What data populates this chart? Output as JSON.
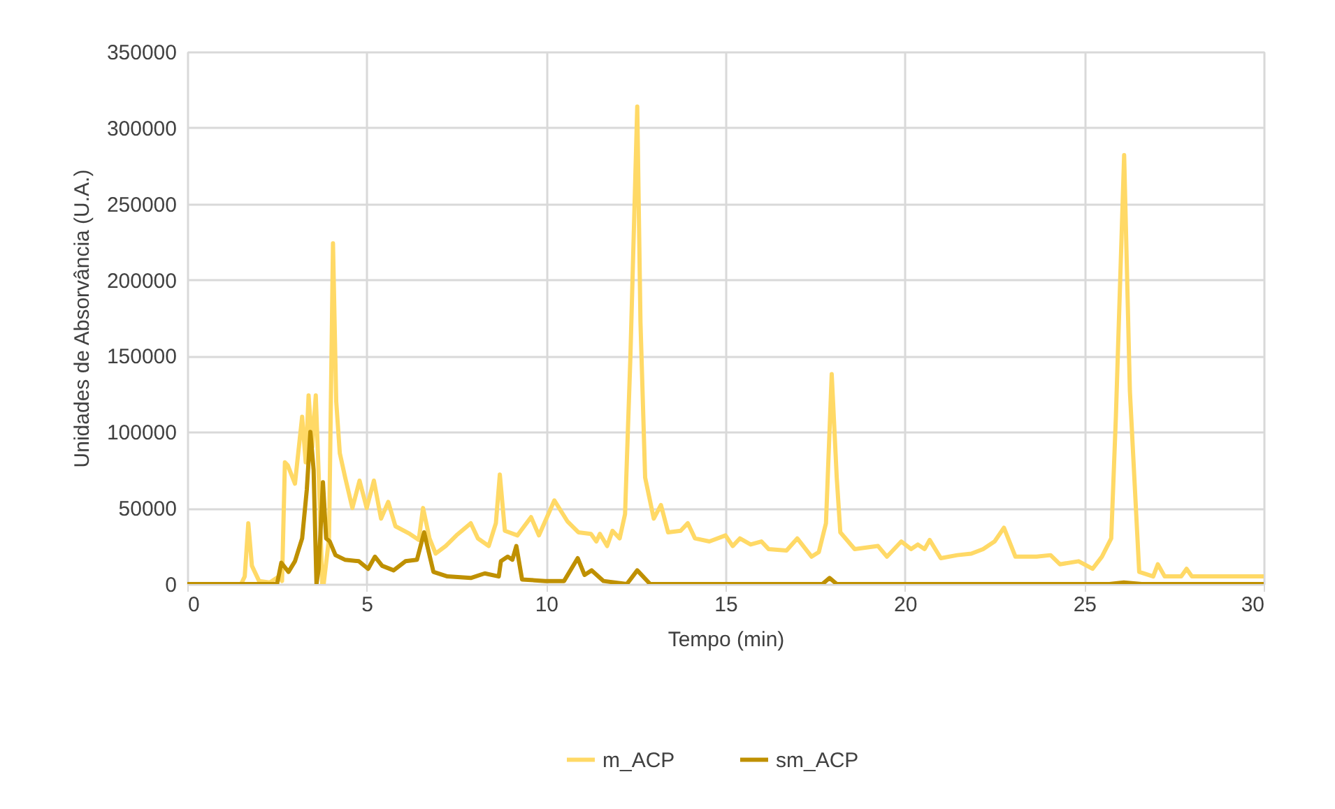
{
  "chart_data": {
    "type": "line",
    "xlabel": "Tempo (min)",
    "ylabel": "Unidades de Absorvância (U.A.)",
    "xlim": [
      0,
      30
    ],
    "xticks": [
      0,
      5,
      10,
      15,
      20,
      25,
      30
    ],
    "ylim": [
      0,
      350000
    ],
    "yticks": [
      0,
      50000,
      100000,
      150000,
      200000,
      250000,
      300000,
      350000
    ],
    "grid": true,
    "legend": "bottom",
    "marker": "none",
    "line_style": "solid",
    "series": [
      {
        "name": "m_ACP",
        "color": "#ffd966",
        "x": [
          0,
          1.5,
          1.6,
          1.7,
          1.8,
          2.0,
          2.3,
          2.55,
          2.64,
          2.72,
          2.8,
          3.0,
          3.2,
          3.3,
          3.38,
          3.48,
          3.58,
          3.68,
          3.76,
          3.8,
          3.95,
          4.06,
          4.15,
          4.25,
          4.4,
          4.6,
          4.8,
          5.0,
          5.2,
          5.4,
          5.6,
          5.8,
          6.2,
          6.45,
          6.57,
          6.75,
          6.92,
          7.2,
          7.5,
          7.9,
          8.1,
          8.4,
          8.6,
          8.71,
          8.85,
          9.2,
          9.58,
          9.8,
          10.23,
          10.6,
          10.9,
          11.25,
          11.4,
          11.5,
          11.7,
          11.85,
          12.05,
          12.2,
          12.35,
          12.54,
          12.63,
          12.76,
          13.0,
          13.2,
          13.4,
          13.75,
          13.95,
          14.15,
          14.55,
          15.0,
          15.2,
          15.4,
          15.7,
          16.0,
          16.2,
          16.7,
          17.0,
          17.4,
          17.6,
          17.8,
          17.96,
          18.1,
          18.2,
          18.6,
          19.25,
          19.5,
          19.9,
          20.17,
          20.36,
          20.55,
          20.69,
          21.0,
          21.46,
          21.85,
          22.18,
          22.5,
          22.76,
          23.08,
          23.67,
          24.06,
          24.32,
          24.84,
          25.23,
          25.49,
          25.75,
          25.88,
          26.11,
          26.27,
          26.53,
          26.92,
          27.05,
          27.24,
          27.7,
          27.85,
          28.0,
          30
        ],
        "values": [
          0,
          0,
          5000,
          40000,
          12000,
          2000,
          1000,
          5000,
          2000,
          80000,
          78000,
          66000,
          110000,
          80000,
          124000,
          90000,
          124000,
          60000,
          0,
          0,
          30000,
          224000,
          120000,
          86000,
          70000,
          50000,
          68000,
          50000,
          68000,
          43000,
          54000,
          38000,
          33000,
          29000,
          50000,
          30000,
          20000,
          25000,
          32000,
          40000,
          30000,
          25000,
          40000,
          72000,
          35000,
          32000,
          44000,
          32000,
          55000,
          41000,
          34000,
          33000,
          28000,
          33000,
          25000,
          35000,
          30000,
          46000,
          150000,
          314000,
          172000,
          70000,
          43000,
          52000,
          34000,
          35000,
          40000,
          30000,
          28000,
          32000,
          25000,
          30000,
          26000,
          28000,
          23000,
          22000,
          30000,
          18000,
          21000,
          40000,
          138000,
          70000,
          34000,
          23000,
          25000,
          18000,
          28000,
          23000,
          26000,
          23000,
          29000,
          17000,
          19000,
          20000,
          23000,
          28000,
          37000,
          18000,
          18000,
          19000,
          13000,
          15000,
          10000,
          18000,
          30000,
          110000,
          282000,
          127000,
          8000,
          5000,
          13000,
          5000,
          5000,
          10000,
          5000,
          5000
        ]
      },
      {
        "name": "sm_ACP",
        "color": "#bf9000",
        "x": [
          0,
          2.5,
          2.62,
          2.82,
          3.0,
          3.2,
          3.33,
          3.43,
          3.52,
          3.6,
          3.66,
          3.78,
          3.87,
          3.97,
          4.13,
          4.39,
          4.78,
          5.04,
          5.23,
          5.43,
          5.75,
          6.08,
          6.4,
          6.6,
          6.86,
          7.25,
          7.9,
          8.29,
          8.68,
          8.74,
          8.93,
          9.06,
          9.17,
          9.33,
          9.98,
          10.5,
          10.88,
          11.07,
          11.27,
          11.6,
          12.25,
          12.54,
          12.9,
          17.7,
          17.9,
          18.1,
          25.7,
          26.1,
          26.6,
          30
        ],
        "values": [
          0,
          0,
          14000,
          8000,
          15000,
          30000,
          62000,
          100000,
          75000,
          0,
          10000,
          67000,
          30000,
          28000,
          19000,
          16000,
          15000,
          10000,
          18000,
          12000,
          9000,
          15000,
          16000,
          34000,
          8000,
          5000,
          4000,
          7000,
          5000,
          15000,
          18000,
          16000,
          25000,
          3000,
          2000,
          2000,
          17000,
          6000,
          9000,
          2000,
          0,
          9000,
          0,
          0,
          4000,
          0,
          0,
          1000,
          0,
          0
        ]
      }
    ]
  }
}
